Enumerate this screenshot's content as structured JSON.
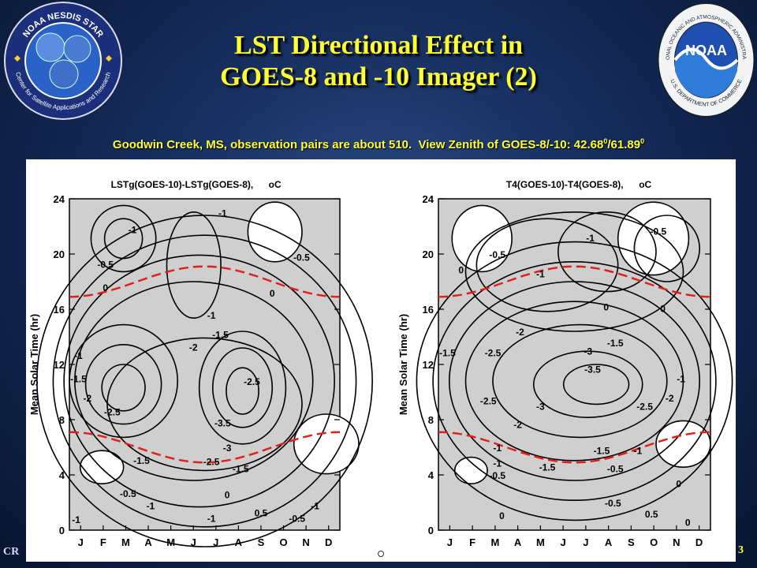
{
  "header": {
    "title_line1": "LST Directional Effect in",
    "title_line2": "GOES-8 and -10 Imager (2)",
    "subtitle_main": "Goodwin Creek, MS, observation pairs are about 510.",
    "subtitle_zenith": "View Zenith of GOES-8/-10: 42.68",
    "subtitle_sep": "/61.89",
    "subtitle_sup": "0",
    "title_color": "#ffff33"
  },
  "logos": {
    "left": {
      "icon": "noaa-nesdis-star-seal-icon",
      "top_text": "NOAA NESDIS STAR",
      "bottom_text": "Center for Satellite Applications and Research"
    },
    "right": {
      "icon": "noaa-seal-icon",
      "center_text": "NOAA",
      "ring_top": "NATIONAL OCEANIC AND ATMOSPHERIC ADMINISTRATION",
      "ring_bottom": "U.S. DEPARTMENT OF COMMERCE"
    }
  },
  "footer": {
    "left": "CR",
    "right": "3"
  },
  "chart_data": [
    {
      "type": "contour",
      "title": "LSTg(GOES-10)-LSTg(GOES-8),",
      "unit": "oC",
      "ylabel": "Mean Solar Time (hr)",
      "yticks": [
        0,
        4,
        8,
        12,
        16,
        20,
        24
      ],
      "ylim": [
        0,
        24
      ],
      "xticks": [
        "J",
        "F",
        "M",
        "A",
        "M",
        "J",
        "J",
        "A",
        "S",
        "O",
        "N",
        "D"
      ],
      "labels": [
        {
          "x": 2.8,
          "y": 21.8,
          "text": "-1"
        },
        {
          "x": 6.8,
          "y": 23.0,
          "text": "-1"
        },
        {
          "x": 1.6,
          "y": 19.3,
          "text": "-0.5"
        },
        {
          "x": 10.3,
          "y": 19.8,
          "text": "-0.5"
        },
        {
          "x": 1.6,
          "y": 17.6,
          "text": "0"
        },
        {
          "x": 9.0,
          "y": 17.2,
          "text": "0"
        },
        {
          "x": 6.3,
          "y": 15.6,
          "text": "-1"
        },
        {
          "x": 6.7,
          "y": 14.2,
          "text": "-1.5"
        },
        {
          "x": 5.5,
          "y": 13.3,
          "text": "-2"
        },
        {
          "x": 0.4,
          "y": 12.7,
          "text": "-1"
        },
        {
          "x": 0.4,
          "y": 11.0,
          "text": "-1.5"
        },
        {
          "x": 8.1,
          "y": 10.8,
          "text": "-2.5"
        },
        {
          "x": 0.8,
          "y": 9.6,
          "text": "-2"
        },
        {
          "x": 1.9,
          "y": 8.6,
          "text": "-2.5"
        },
        {
          "x": 6.8,
          "y": 7.8,
          "text": "-3.5"
        },
        {
          "x": 7.0,
          "y": 6.0,
          "text": "-3"
        },
        {
          "x": 6.3,
          "y": 5.0,
          "text": "-2.5"
        },
        {
          "x": 7.6,
          "y": 4.5,
          "text": "-1.5"
        },
        {
          "x": 3.2,
          "y": 5.1,
          "text": "-1.5"
        },
        {
          "x": 2.6,
          "y": 2.7,
          "text": "-0.5"
        },
        {
          "x": 3.6,
          "y": 1.8,
          "text": "-1"
        },
        {
          "x": 7.0,
          "y": 2.6,
          "text": "0"
        },
        {
          "x": 8.5,
          "y": 1.3,
          "text": "0.5"
        },
        {
          "x": 10.1,
          "y": 0.9,
          "text": "-0.5"
        },
        {
          "x": 10.9,
          "y": 1.8,
          "text": "-1"
        },
        {
          "x": 6.3,
          "y": 0.9,
          "text": "-1"
        },
        {
          "x": 0.3,
          "y": 0.8,
          "text": "-1"
        }
      ]
    },
    {
      "type": "contour",
      "title": "T4(GOES-10)-T4(GOES-8),",
      "unit": "oC",
      "ylabel": "Mean Solar Time (hr)",
      "yticks": [
        0,
        4,
        8,
        12,
        16,
        20,
        24
      ],
      "ylim": [
        0,
        24
      ],
      "xticks": [
        "J",
        "F",
        "M",
        "A",
        "M",
        "J",
        "J",
        "A",
        "S",
        "O",
        "N",
        "D"
      ],
      "labels": [
        {
          "x": 2.6,
          "y": 20.0,
          "text": "-0.5"
        },
        {
          "x": 6.7,
          "y": 21.2,
          "text": "-1"
        },
        {
          "x": 9.7,
          "y": 21.7,
          "text": "-0.5"
        },
        {
          "x": 1.0,
          "y": 18.9,
          "text": "0"
        },
        {
          "x": 4.5,
          "y": 18.6,
          "text": "-1"
        },
        {
          "x": 7.4,
          "y": 16.2,
          "text": "0"
        },
        {
          "x": 9.9,
          "y": 16.1,
          "text": "0"
        },
        {
          "x": 3.6,
          "y": 14.4,
          "text": "-2"
        },
        {
          "x": 7.8,
          "y": 13.6,
          "text": "-1.5"
        },
        {
          "x": 0.4,
          "y": 12.9,
          "text": "-1.5"
        },
        {
          "x": 2.4,
          "y": 12.9,
          "text": "-2.5"
        },
        {
          "x": 6.6,
          "y": 13.0,
          "text": "-3"
        },
        {
          "x": 6.8,
          "y": 11.7,
          "text": "-3.5"
        },
        {
          "x": 10.7,
          "y": 11.0,
          "text": "-1"
        },
        {
          "x": 10.2,
          "y": 9.6,
          "text": "-2"
        },
        {
          "x": 2.2,
          "y": 9.4,
          "text": "-2.5"
        },
        {
          "x": 4.5,
          "y": 9.0,
          "text": "-3"
        },
        {
          "x": 9.1,
          "y": 9.0,
          "text": "-2.5"
        },
        {
          "x": 3.5,
          "y": 7.7,
          "text": "-2"
        },
        {
          "x": 2.6,
          "y": 6.0,
          "text": "-1"
        },
        {
          "x": 2.6,
          "y": 4.9,
          "text": "-1"
        },
        {
          "x": 7.2,
          "y": 5.8,
          "text": "-1.5"
        },
        {
          "x": 8.8,
          "y": 5.8,
          "text": "-1"
        },
        {
          "x": 2.6,
          "y": 4.0,
          "text": "-0.5"
        },
        {
          "x": 4.8,
          "y": 4.6,
          "text": "-1.5"
        },
        {
          "x": 7.8,
          "y": 4.5,
          "text": "-0.5"
        },
        {
          "x": 2.8,
          "y": 1.1,
          "text": "0"
        },
        {
          "x": 7.7,
          "y": 2.0,
          "text": "-0.5"
        },
        {
          "x": 10.6,
          "y": 3.4,
          "text": "0"
        },
        {
          "x": 9.4,
          "y": 1.2,
          "text": "0.5"
        },
        {
          "x": 11.0,
          "y": 0.6,
          "text": "0"
        }
      ]
    }
  ]
}
